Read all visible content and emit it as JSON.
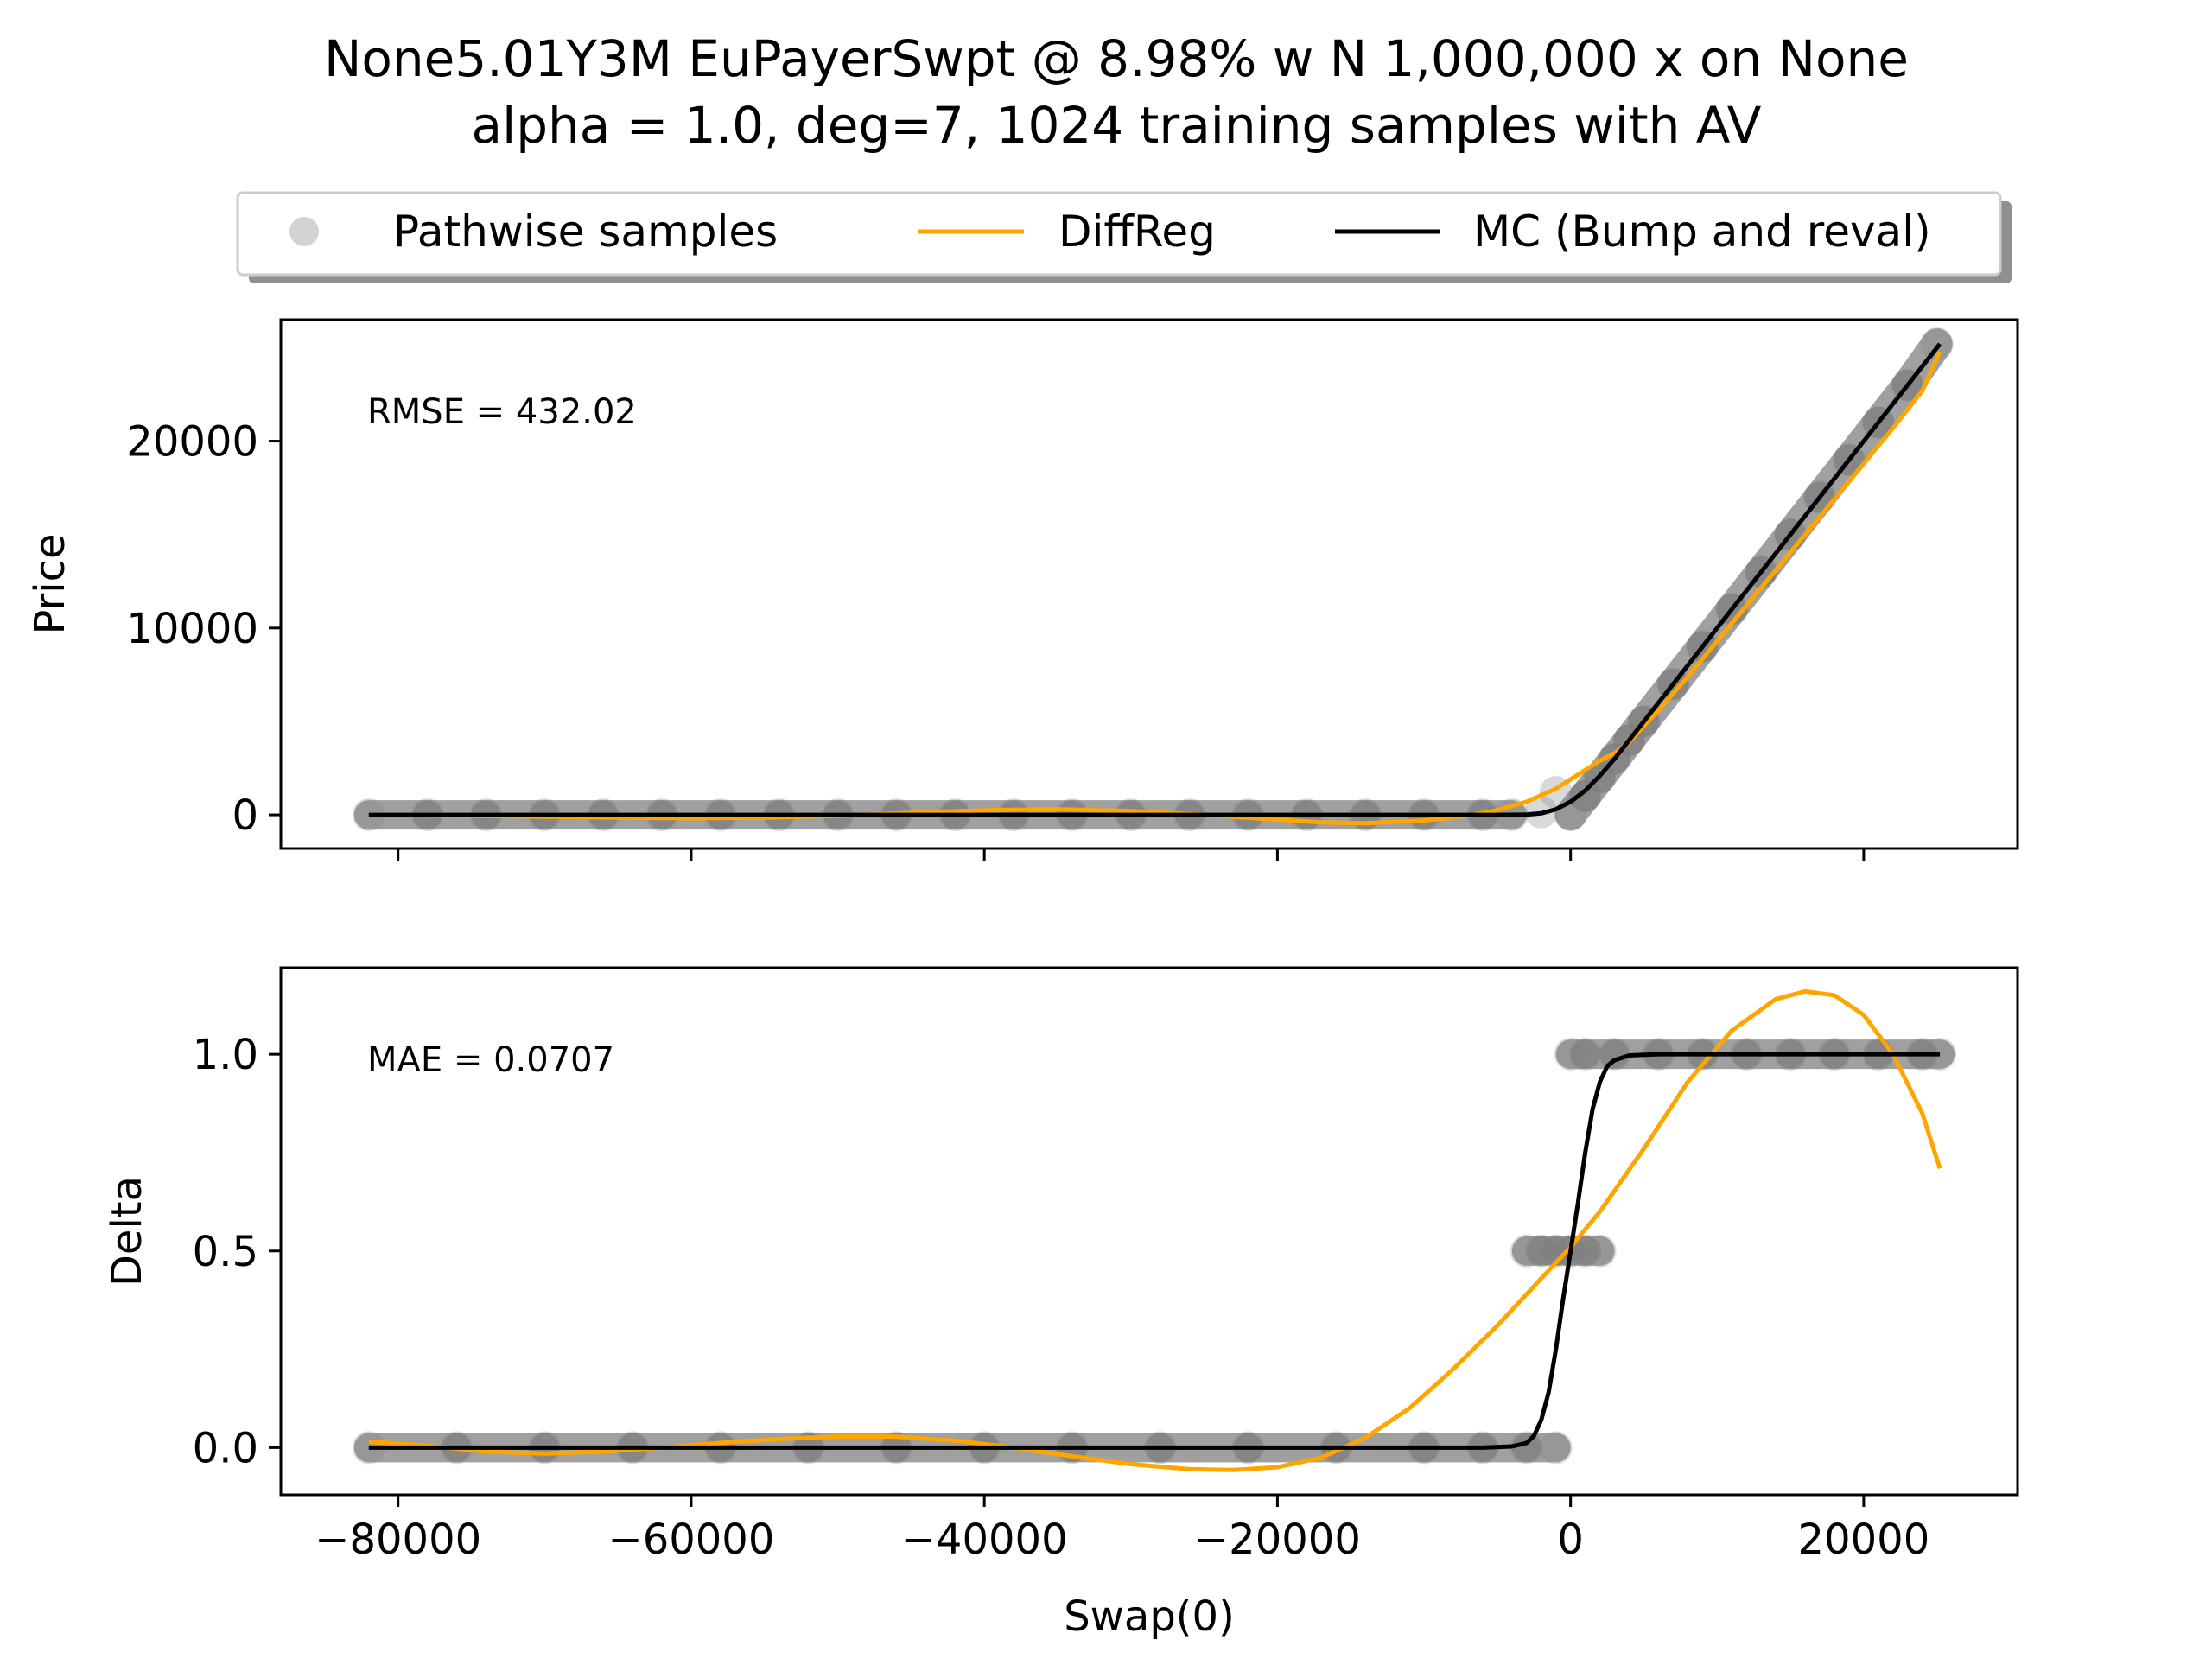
{
  "title_line1": "None5.01Y3M EuPayerSwpt @ 8.98% w N 1,000,000 x on None",
  "title_line2": "alpha = 1.0, deg=7, 1024 training samples with AV",
  "legend": [
    {
      "label": "Pathwise samples",
      "marker": "circle",
      "color": "#808080"
    },
    {
      "label": "DiffReg",
      "marker": "line",
      "color": "#FFA500"
    },
    {
      "label": "MC (Bump and reval)",
      "marker": "line",
      "color": "#000000"
    }
  ],
  "xlabel": "Swap(0)",
  "chart_data": [
    {
      "type": "line",
      "ylabel": "Price",
      "annotation": "RMSE = 432.02",
      "xlim": [
        -88000,
        30500
      ],
      "ylim": [
        -1800,
        26500
      ],
      "xticks": [
        -80000,
        -60000,
        -40000,
        -20000,
        0,
        20000
      ],
      "xtick_labels": [
        "",
        "",
        "",
        "",
        "",
        ""
      ],
      "yticks": [
        0,
        10000,
        20000
      ],
      "ytick_labels": [
        "0",
        "10000",
        "20000"
      ],
      "grid": false,
      "series": [
        {
          "name": "Pathwise samples",
          "kind": "scatter",
          "color": "#808080",
          "x": [
            -82000,
            -78000,
            -74000,
            -70000,
            -66000,
            -62000,
            -58000,
            -54000,
            -50000,
            -46000,
            -42000,
            -38000,
            -34000,
            -30000,
            -26000,
            -22000,
            -18000,
            -14000,
            -10000,
            -6000,
            -4000,
            -2000,
            -1000,
            0,
            1000,
            2000,
            3000,
            4000,
            5000,
            7000,
            9000,
            11000,
            13000,
            15000,
            17000,
            19000,
            21000,
            23000,
            25000
          ],
          "y": [
            0,
            0,
            0,
            0,
            0,
            0,
            0,
            0,
            0,
            0,
            0,
            0,
            0,
            0,
            0,
            0,
            0,
            0,
            0,
            0,
            0,
            150,
            1200,
            0,
            1000,
            2000,
            3000,
            4000,
            5000,
            7000,
            9000,
            11000,
            13000,
            15000,
            17000,
            19000,
            21000,
            23000,
            25200
          ]
        },
        {
          "name": "DiffReg",
          "kind": "line",
          "color": "#FFA500",
          "x": [
            -82000,
            -75000,
            -70000,
            -65000,
            -60000,
            -55000,
            -50000,
            -45000,
            -40000,
            -35000,
            -30000,
            -25000,
            -20000,
            -17000,
            -14000,
            -10000,
            -7000,
            -5000,
            -3000,
            -1000,
            0,
            1000,
            2000,
            3000,
            4000,
            6000,
            8000,
            10000,
            12000,
            14000,
            16000,
            18000,
            20000,
            22000,
            24000,
            25200
          ],
          "y": [
            0,
            -50,
            -100,
            -150,
            -180,
            -150,
            -50,
            100,
            250,
            300,
            200,
            0,
            -250,
            -400,
            -450,
            -300,
            -50,
            250,
            700,
            1400,
            1900,
            2400,
            2900,
            3300,
            3900,
            5600,
            7400,
            9300,
            11200,
            13100,
            15000,
            16900,
            18800,
            20700,
            22700,
            24800
          ]
        },
        {
          "name": "MC (Bump and reval)",
          "kind": "line",
          "color": "#000000",
          "x": [
            -82000,
            -60000,
            -40000,
            -20000,
            -5000,
            -3000,
            -2000,
            -1000,
            0,
            1000,
            2000,
            3000,
            5000,
            10000,
            15000,
            20000,
            25200
          ],
          "y": [
            0,
            0,
            0,
            0,
            0,
            15,
            80,
            300,
            700,
            1300,
            2100,
            3000,
            5000,
            10000,
            15000,
            20000,
            25200
          ]
        }
      ]
    },
    {
      "type": "line",
      "ylabel": "Delta",
      "annotation": "MAE = 0.0707",
      "xlim": [
        -88000,
        30500
      ],
      "ylim": [
        -0.12,
        1.22
      ],
      "xticks": [
        -80000,
        -60000,
        -40000,
        -20000,
        0,
        20000
      ],
      "xtick_labels": [
        "−80000",
        "−60000",
        "−40000",
        "−20000",
        "0",
        "20000"
      ],
      "yticks": [
        0.0,
        0.5,
        1.0
      ],
      "ytick_labels": [
        "0.0",
        "0.5",
        "1.0"
      ],
      "grid": false,
      "series": [
        {
          "name": "Pathwise samples",
          "kind": "scatter",
          "color": "#808080",
          "x": [
            -82000,
            -76000,
            -70000,
            -64000,
            -58000,
            -52000,
            -46000,
            -40000,
            -34000,
            -28000,
            -22000,
            -16000,
            -10000,
            -6000,
            -3000,
            -1000,
            -3000,
            -2000,
            -1000,
            0,
            1000,
            2000,
            0,
            1000,
            3000,
            6000,
            9000,
            12000,
            15000,
            18000,
            21000,
            24000,
            25200
          ],
          "y": [
            0,
            0,
            0,
            0,
            0,
            0,
            0,
            0,
            0,
            0,
            0,
            0,
            0,
            0,
            0,
            0,
            0.5,
            0.5,
            0.5,
            0.5,
            0.5,
            0.5,
            1,
            1,
            1,
            1,
            1,
            1,
            1,
            1,
            1,
            1,
            1
          ]
        },
        {
          "name": "DiffReg",
          "kind": "line",
          "color": "#FFA500",
          "x": [
            -82000,
            -78000,
            -74000,
            -70000,
            -66000,
            -62000,
            -58000,
            -54000,
            -50000,
            -46000,
            -42000,
            -38000,
            -34000,
            -30000,
            -26000,
            -23000,
            -20000,
            -17000,
            -14000,
            -11000,
            -8000,
            -5000,
            -2000,
            0,
            2000,
            5000,
            8000,
            11000,
            14000,
            16000,
            18000,
            20000,
            22000,
            24000,
            25200
          ],
          "y": [
            0.015,
            0.005,
            -0.01,
            -0.015,
            -0.01,
            0.0,
            0.012,
            0.022,
            0.028,
            0.028,
            0.018,
            0.0,
            -0.022,
            -0.042,
            -0.055,
            -0.057,
            -0.05,
            -0.025,
            0.025,
            0.1,
            0.2,
            0.31,
            0.43,
            0.51,
            0.6,
            0.76,
            0.93,
            1.06,
            1.14,
            1.16,
            1.15,
            1.1,
            1.0,
            0.85,
            0.71
          ]
        },
        {
          "name": "MC (Bump and reval)",
          "kind": "line",
          "color": "#000000",
          "x": [
            -82000,
            -60000,
            -40000,
            -20000,
            -6000,
            -4000,
            -3000,
            -2500,
            -2000,
            -1500,
            -1000,
            -500,
            0,
            500,
            1000,
            1500,
            2000,
            2500,
            3000,
            4000,
            6000,
            10000,
            20000,
            25200
          ],
          "y": [
            0,
            0,
            0,
            0,
            0,
            0.003,
            0.012,
            0.03,
            0.07,
            0.14,
            0.25,
            0.38,
            0.5,
            0.62,
            0.75,
            0.86,
            0.93,
            0.97,
            0.985,
            0.997,
            1.0,
            1.0,
            1.0,
            1.0
          ]
        }
      ]
    }
  ]
}
